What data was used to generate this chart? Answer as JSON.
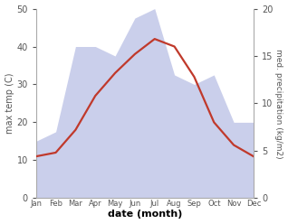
{
  "months": [
    "Jan",
    "Feb",
    "Mar",
    "Apr",
    "May",
    "Jun",
    "Jul",
    "Aug",
    "Sep",
    "Oct",
    "Nov",
    "Dec"
  ],
  "temperature": [
    11,
    12,
    18,
    27,
    33,
    38,
    42,
    40,
    32,
    20,
    14,
    11
  ],
  "precipitation_mm": [
    6,
    7,
    16,
    16,
    15,
    19,
    20,
    13,
    12,
    13,
    8,
    8
  ],
  "temp_ylim": [
    0,
    50
  ],
  "precip_ylim": [
    0,
    20
  ],
  "temp_color": "#c0392b",
  "precip_fill_color": "#c5cae9",
  "precip_edge_color": "#9fa8da",
  "xlabel": "date (month)",
  "ylabel_left": "max temp (C)",
  "ylabel_right": "med. precipitation (kg/m2)",
  "temp_linewidth": 1.6,
  "fig_width": 3.18,
  "fig_height": 2.48,
  "dpi": 100,
  "bg_color": "#ffffff"
}
